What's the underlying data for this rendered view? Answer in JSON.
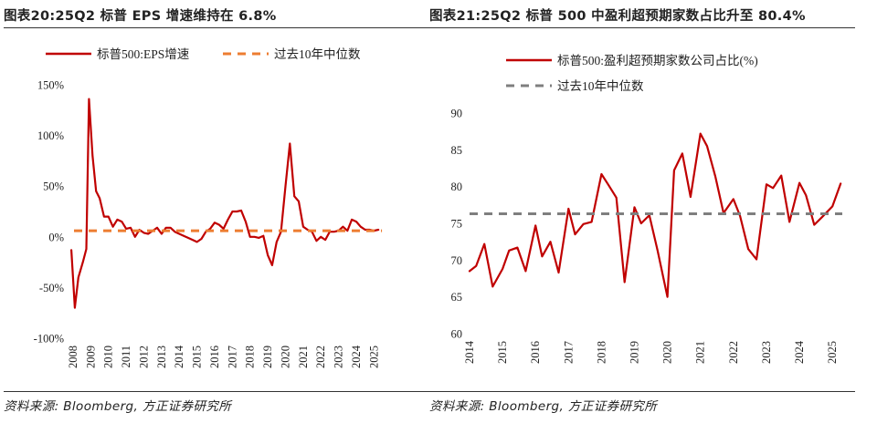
{
  "chart_data": [
    {
      "type": "line",
      "title": "图表20:25Q2 标普 EPS 增速维持在 6.8%",
      "source": "资料来源: Bloomberg, 方正证券研究所",
      "ylim": [
        -100,
        150
      ],
      "xlim": [
        2008,
        2025.55
      ],
      "yticks": [
        "150%",
        "100%",
        "50%",
        "0%",
        "-50%",
        "-100%"
      ],
      "xticks": [
        "2008",
        "2009",
        "2010",
        "2011",
        "2012",
        "2013",
        "2014",
        "2015",
        "2016",
        "2017",
        "2018",
        "2019",
        "2020",
        "2021",
        "2022",
        "2023",
        "2024",
        "2025"
      ],
      "legend_position": "top",
      "grid": false,
      "series": [
        {
          "name": "标普500:EPS增速",
          "color": "#c00000",
          "style": "solid",
          "x": [
            2007.9,
            2008.1,
            2008.3,
            2008.55,
            2008.75,
            2008.9,
            2009.1,
            2009.3,
            2009.5,
            2009.75,
            2010.0,
            2010.25,
            2010.5,
            2010.75,
            2011.0,
            2011.25,
            2011.5,
            2011.75,
            2012.0,
            2012.25,
            2012.5,
            2012.75,
            2013.0,
            2013.25,
            2013.5,
            2013.75,
            2014.0,
            2014.25,
            2014.5,
            2014.75,
            2015.0,
            2015.25,
            2015.5,
            2015.75,
            2016.0,
            2016.25,
            2016.5,
            2016.75,
            2017.0,
            2017.25,
            2017.5,
            2017.75,
            2018.0,
            2018.25,
            2018.5,
            2018.75,
            2019.0,
            2019.25,
            2019.5,
            2019.75,
            2020.0,
            2020.25,
            2020.5,
            2020.75,
            2021.0,
            2021.25,
            2021.5,
            2021.75,
            2022.0,
            2022.25,
            2022.5,
            2022.75,
            2023.0,
            2023.25,
            2023.5,
            2023.75,
            2024.0,
            2024.25,
            2024.5,
            2024.75,
            2025.0,
            2025.25
          ],
          "y": [
            -13,
            -70,
            -40,
            -25,
            -12,
            136,
            80,
            45,
            38,
            20,
            20,
            10,
            17,
            15,
            8,
            9,
            0,
            7,
            4,
            3,
            6,
            9,
            3,
            9,
            9,
            5,
            3,
            1,
            -1,
            -3,
            -5,
            -2,
            5,
            8,
            14,
            12,
            8,
            17,
            25,
            25,
            26,
            15,
            0,
            0,
            -1,
            1,
            -18,
            -28,
            -5,
            5,
            50,
            92,
            40,
            35,
            10,
            7,
            5,
            -4,
            0,
            -3,
            5,
            5,
            6,
            10,
            6,
            17,
            15,
            10,
            7,
            7,
            6,
            7
          ]
        },
        {
          "name": "过去10年中位数",
          "color": "#ed7d31",
          "style": "dashed",
          "x": [
            2008.05,
            2025.45
          ],
          "y": [
            6,
            6
          ]
        }
      ]
    },
    {
      "type": "line",
      "title": "图表21:25Q2 标普 500 中盈利超预期家数占比升至 80.4%",
      "source": "资料来源: Bloomberg, 方正证券研究所",
      "ylim": [
        60,
        90
      ],
      "xlim": [
        2014,
        2025.3
      ],
      "yticks": [
        "90",
        "85",
        "80",
        "75",
        "70",
        "65",
        "60"
      ],
      "xticks": [
        "2014",
        "2015",
        "2016",
        "2017",
        "2018",
        "2019",
        "2020",
        "2021",
        "2022",
        "2023",
        "2024",
        "2025"
      ],
      "legend_position": "top",
      "grid": false,
      "series": [
        {
          "name": "标普500:盈利超预期家数公司占比(%)",
          "color": "#c00000",
          "style": "solid",
          "x": [
            2014.0,
            2014.2,
            2014.45,
            2014.7,
            2015.0,
            2015.2,
            2015.45,
            2015.7,
            2016.0,
            2016.2,
            2016.45,
            2016.7,
            2017.0,
            2017.2,
            2017.45,
            2017.7,
            2018.0,
            2018.2,
            2018.45,
            2018.7,
            2019.0,
            2019.2,
            2019.45,
            2019.7,
            2020.0,
            2020.2,
            2020.45,
            2020.7,
            2021.0,
            2021.2,
            2021.45,
            2021.7,
            2022.0,
            2022.2,
            2022.45,
            2022.7,
            2023.0,
            2023.2,
            2023.45,
            2023.7,
            2024.0,
            2024.2,
            2024.45,
            2024.7,
            2025.0,
            2025.25
          ],
          "y": [
            68.5,
            69.2,
            72.2,
            66.4,
            68.8,
            71.3,
            71.7,
            68.5,
            74.7,
            70.5,
            72.5,
            68.3,
            77.0,
            73.5,
            74.9,
            75.2,
            81.7,
            80.3,
            78.5,
            67.0,
            77.2,
            75.0,
            76.1,
            71.3,
            65.0,
            82.2,
            84.5,
            78.6,
            87.2,
            85.5,
            81.4,
            76.4,
            78.3,
            76.0,
            71.5,
            70.1,
            80.3,
            79.8,
            81.5,
            75.2,
            80.5,
            78.8,
            74.8,
            75.9,
            77.3,
            80.4
          ]
        },
        {
          "name": "过去10年中位数",
          "color": "#7f7f7f",
          "style": "dashed",
          "x": [
            2014.0,
            2025.3
          ],
          "y": [
            76.3,
            76.3
          ]
        }
      ]
    }
  ]
}
